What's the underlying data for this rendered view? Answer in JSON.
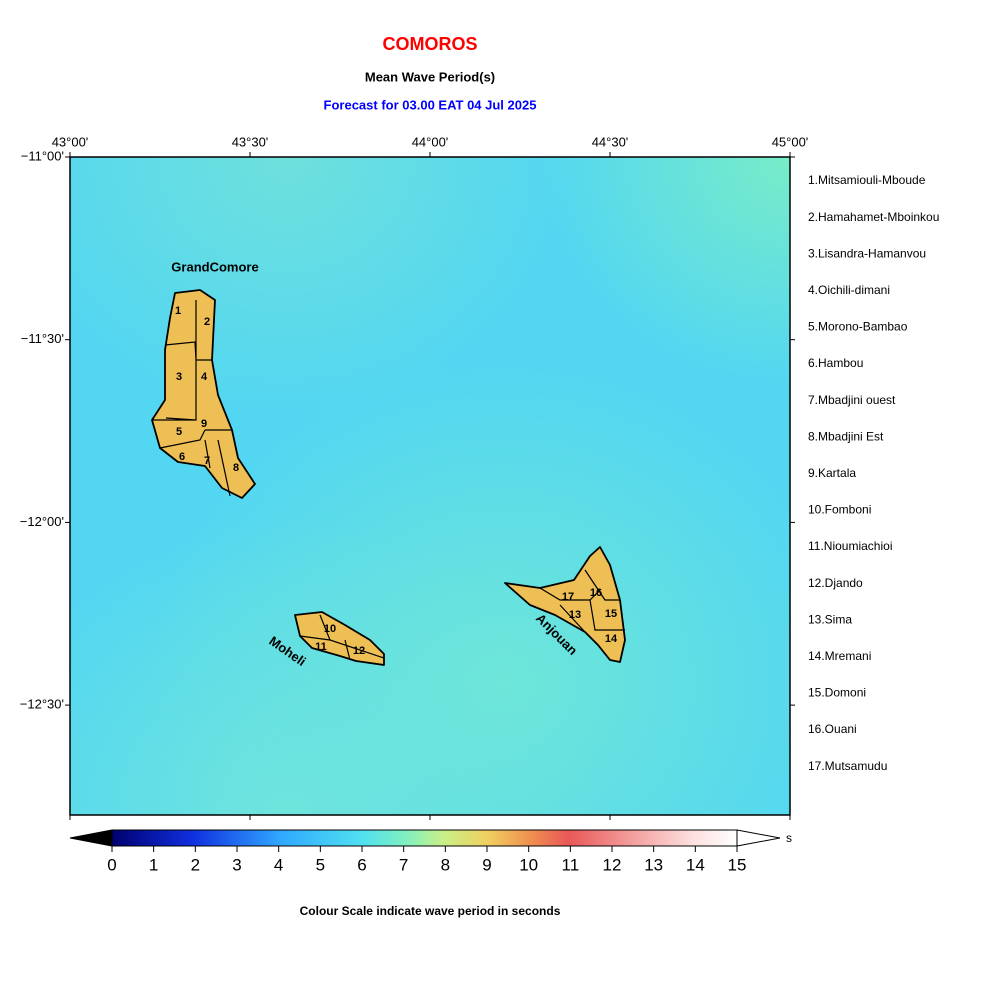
{
  "title": "COMOROS",
  "subtitle": "Mean Wave Period(s)",
  "forecast": "Forecast for  03.00 EAT 04 Jul 2025",
  "map": {
    "x_ticks": [
      "43°00'",
      "43°30'",
      "44°00'",
      "44°30'",
      "45°00'"
    ],
    "y_ticks": [
      "−11°00'",
      "−11°30'",
      "−12°00'",
      "−12°30'"
    ],
    "islands": [
      "GrandComore",
      "Moheli",
      "Anjouan"
    ],
    "region_numbers": [
      "1",
      "2",
      "3",
      "4",
      "5",
      "6",
      "7",
      "8",
      "9",
      "10",
      "11",
      "12",
      "13",
      "14",
      "15",
      "16",
      "17"
    ]
  },
  "districts": [
    "1.Mitsamiouli-Mboude",
    "2.Hamahamet-Mboinkou",
    "3.Lisandra-Hamanvou",
    "4.Oichili-dimani",
    "5.Morono-Bambao",
    "6.Hambou",
    "7.Mbadjini ouest",
    "8.Mbadjini Est",
    "9.Kartala",
    "10.Fomboni",
    "11.Nioumiachioi",
    "12.Djando",
    "13.Sima",
    "14.Mremani",
    "15.Domoni",
    "16.Ouani",
    "17.Mutsamudu"
  ],
  "colorbar": {
    "ticks": [
      0,
      1,
      2,
      3,
      4,
      5,
      6,
      7,
      8,
      9,
      10,
      11,
      12,
      13,
      14,
      15
    ],
    "unit": "s",
    "caption": "Colour Scale indicate wave period in seconds"
  }
}
